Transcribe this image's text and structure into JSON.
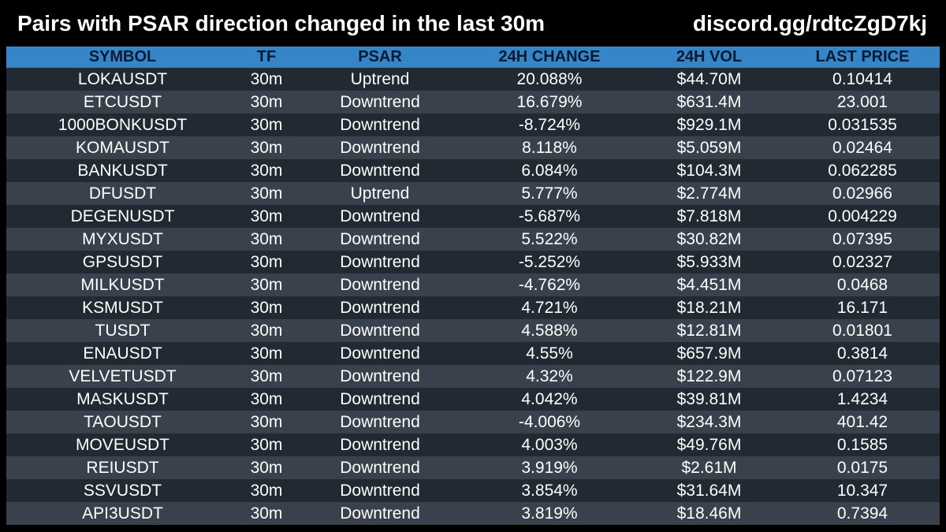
{
  "header": {
    "title": "Pairs with PSAR direction changed in the last 30m",
    "link": "discord.gg/rdtcZgD7kj"
  },
  "colors": {
    "background": "#000000",
    "header_row": "#3585c7",
    "header_text": "#0b1a33",
    "row_dark": "#212a33",
    "row_light": "#39424c",
    "text": "#ffffff"
  },
  "chart_data": {
    "type": "table",
    "columns": [
      "SYMBOL",
      "TF",
      "PSAR",
      "24H CHANGE",
      "24H VOL",
      "LAST PRICE"
    ],
    "rows": [
      [
        "LOKAUSDT",
        "30m",
        "Uptrend",
        "20.088%",
        "$44.70M",
        "0.10414"
      ],
      [
        "ETCUSDT",
        "30m",
        "Downtrend",
        "16.679%",
        "$631.4M",
        "23.001"
      ],
      [
        "1000BONKUSDT",
        "30m",
        "Downtrend",
        "-8.724%",
        "$929.1M",
        "0.031535"
      ],
      [
        "KOMAUSDT",
        "30m",
        "Downtrend",
        "8.118%",
        "$5.059M",
        "0.02464"
      ],
      [
        "BANKUSDT",
        "30m",
        "Downtrend",
        "6.084%",
        "$104.3M",
        "0.062285"
      ],
      [
        "DFUSDT",
        "30m",
        "Uptrend",
        "5.777%",
        "$2.774M",
        "0.02966"
      ],
      [
        "DEGENUSDT",
        "30m",
        "Downtrend",
        "-5.687%",
        "$7.818M",
        "0.004229"
      ],
      [
        "MYXUSDT",
        "30m",
        "Downtrend",
        "5.522%",
        "$30.82M",
        "0.07395"
      ],
      [
        "GPSUSDT",
        "30m",
        "Downtrend",
        "-5.252%",
        "$5.933M",
        "0.02327"
      ],
      [
        "MILKUSDT",
        "30m",
        "Downtrend",
        "-4.762%",
        "$4.451M",
        "0.0468"
      ],
      [
        "KSMUSDT",
        "30m",
        "Downtrend",
        "4.721%",
        "$18.21M",
        "16.171"
      ],
      [
        "TUSDT",
        "30m",
        "Downtrend",
        "4.588%",
        "$12.81M",
        "0.01801"
      ],
      [
        "ENAUSDT",
        "30m",
        "Downtrend",
        "4.55%",
        "$657.9M",
        "0.3814"
      ],
      [
        "VELVETUSDT",
        "30m",
        "Downtrend",
        "4.32%",
        "$122.9M",
        "0.07123"
      ],
      [
        "MASKUSDT",
        "30m",
        "Downtrend",
        "4.042%",
        "$39.81M",
        "1.4234"
      ],
      [
        "TAOUSDT",
        "30m",
        "Downtrend",
        "-4.006%",
        "$234.3M",
        "401.42"
      ],
      [
        "MOVEUSDT",
        "30m",
        "Downtrend",
        "4.003%",
        "$49.76M",
        "0.1585"
      ],
      [
        "REIUSDT",
        "30m",
        "Downtrend",
        "3.919%",
        "$2.61M",
        "0.0175"
      ],
      [
        "SSVUSDT",
        "30m",
        "Downtrend",
        "3.854%",
        "$31.64M",
        "10.347"
      ],
      [
        "API3USDT",
        "30m",
        "Downtrend",
        "3.819%",
        "$18.46M",
        "0.7394"
      ]
    ]
  }
}
